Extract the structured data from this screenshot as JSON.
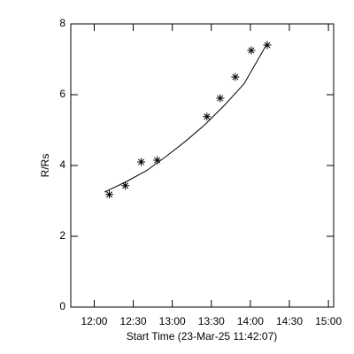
{
  "chart_data": {
    "type": "scatter",
    "x_label": "Start Time (23-Mar-25 11:42:07)",
    "y_label": "R/Rs",
    "x": [
      731.6,
      743.9,
      756.1,
      768.4,
      806.6,
      816.8,
      828.4,
      840.7,
      853.0
    ],
    "values": [
      3.18,
      3.43,
      4.1,
      4.15,
      5.38,
      5.9,
      6.5,
      7.25,
      7.4
    ],
    "marker": "asterisk",
    "color": "#000000",
    "fit": {
      "x": [
        728,
        745,
        760,
        775,
        790,
        805,
        820,
        835,
        853
      ],
      "values": [
        3.25,
        3.55,
        3.85,
        4.25,
        4.68,
        5.15,
        5.7,
        6.3,
        7.45
      ]
    },
    "xlim": [
      702,
      904
    ],
    "xticks": [
      {
        "value": 720,
        "label": "12:00"
      },
      {
        "value": 750,
        "label": "12:30"
      },
      {
        "value": 780,
        "label": "13:00"
      },
      {
        "value": 810,
        "label": "13:30"
      },
      {
        "value": 840,
        "label": "14:00"
      },
      {
        "value": 870,
        "label": "14:30"
      },
      {
        "value": 900,
        "label": "15:00"
      }
    ],
    "ylim": [
      0,
      8
    ],
    "yticks": [
      0,
      2,
      4,
      6,
      8
    ]
  }
}
